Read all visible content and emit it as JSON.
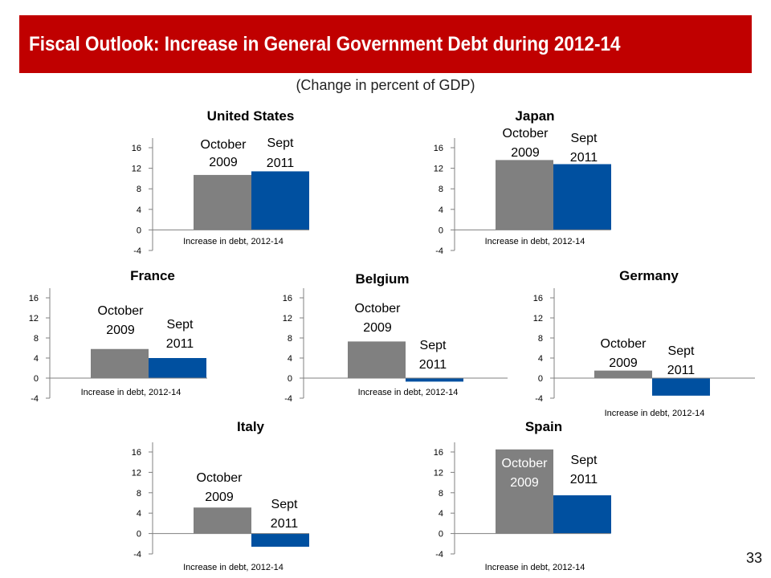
{
  "slide": {
    "title": "Fiscal Outlook: Increase in General Government Debt during 2012-14",
    "subtitle": "(Change in percent of GDP)",
    "page_number": "33"
  },
  "colors": {
    "banner": "#c00000",
    "october_2009": "#808080",
    "sept_2011": "#0050a0"
  },
  "chart_data": [
    {
      "type": "bar",
      "title": "United   States",
      "categories": [
        "Increase in debt, 2012-14"
      ],
      "series": [
        {
          "name": "October 2009",
          "values": [
            10.7
          ]
        },
        {
          "name": "Sept 2011",
          "values": [
            11.4
          ]
        }
      ],
      "ylim": [
        -4,
        16
      ],
      "yticks": [
        -4,
        0,
        4,
        8,
        12,
        16
      ],
      "grid": false
    },
    {
      "type": "bar",
      "title": "Japan",
      "categories": [
        "Increase in debt, 2012-14"
      ],
      "series": [
        {
          "name": "October 2009",
          "values": [
            13.6
          ]
        },
        {
          "name": "Sept 2011",
          "values": [
            12.8
          ]
        }
      ],
      "ylim": [
        -4,
        16
      ],
      "yticks": [
        -4,
        0,
        4,
        8,
        12,
        16
      ],
      "grid": false
    },
    {
      "type": "bar",
      "title": "France",
      "categories": [
        "Increase in debt, 2012-14"
      ],
      "series": [
        {
          "name": "October 2009",
          "values": [
            5.8
          ]
        },
        {
          "name": "Sept 2011",
          "values": [
            4.0
          ]
        }
      ],
      "ylim": [
        -4,
        16
      ],
      "yticks": [
        -4,
        0,
        4,
        8,
        12,
        16
      ],
      "grid": false
    },
    {
      "type": "bar",
      "title": "Belgium",
      "categories": [
        "Increase in debt, 2012-14"
      ],
      "series": [
        {
          "name": "October 2009",
          "values": [
            7.3
          ]
        },
        {
          "name": "Sept 2011",
          "values": [
            -0.7
          ]
        }
      ],
      "ylim": [
        -4,
        16
      ],
      "yticks": [
        -4,
        0,
        4,
        8,
        12,
        16
      ],
      "grid": false
    },
    {
      "type": "bar",
      "title": "Germany",
      "categories": [
        "Increase in debt, 2012-14"
      ],
      "series": [
        {
          "name": "October 2009",
          "values": [
            1.5
          ]
        },
        {
          "name": "Sept 2011",
          "values": [
            -3.5
          ]
        }
      ],
      "ylim": [
        -4,
        16
      ],
      "yticks": [
        -4,
        0,
        4,
        8,
        12,
        16
      ],
      "grid": false
    },
    {
      "type": "bar",
      "title": "Italy",
      "categories": [
        "Increase in debt, 2012-14"
      ],
      "series": [
        {
          "name": "October 2009",
          "values": [
            5.1
          ]
        },
        {
          "name": "Sept 2011",
          "values": [
            -2.6
          ]
        }
      ],
      "ylim": [
        -4,
        16
      ],
      "yticks": [
        -4,
        0,
        4,
        8,
        12,
        16
      ],
      "grid": false
    },
    {
      "type": "bar",
      "title": "Spain",
      "categories": [
        "Increase in debt, 2012-14"
      ],
      "series": [
        {
          "name": "October 2009",
          "values": [
            16.5
          ]
        },
        {
          "name": "Sept 2011",
          "values": [
            7.5
          ]
        }
      ],
      "ylim": [
        -4,
        16
      ],
      "yticks": [
        -4,
        0,
        4,
        8,
        12,
        16
      ],
      "grid": false
    }
  ]
}
